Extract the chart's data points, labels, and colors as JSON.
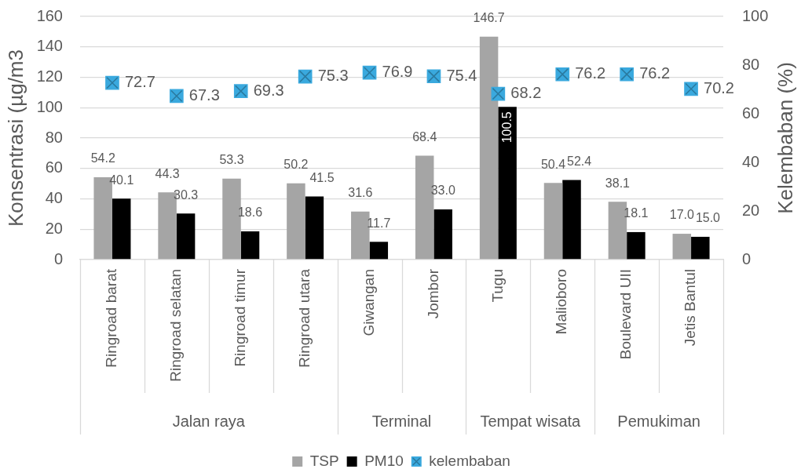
{
  "chart_data": {
    "type": "bar",
    "categories": [
      "Ringroad barat",
      "Ringroad selatan",
      "Ringroad timur",
      "Ringroad utara",
      "Giwangan",
      "Jombor",
      "Tugu",
      "Malioboro",
      "Boulevard UII",
      "Jetis Bantul"
    ],
    "series": [
      {
        "name": "TSP",
        "color": "#a5a5a5",
        "values": [
          54.2,
          44.3,
          53.3,
          50.2,
          31.6,
          68.4,
          146.7,
          50.4,
          38.1,
          17.0
        ],
        "value_labels": [
          "54.2",
          "44.3",
          "53.3",
          "50.2",
          "31.6",
          "68.4",
          "146.7",
          "50.4",
          "38.1",
          "17.0"
        ]
      },
      {
        "name": "PM10",
        "color": "#000000",
        "values": [
          40.1,
          30.3,
          18.6,
          41.5,
          11.7,
          33.0,
          100.5,
          52.4,
          18.1,
          15.0
        ],
        "value_labels": [
          "40.1",
          "30.3",
          "18.6",
          "41.5",
          "11.7",
          "33.0",
          "100.5",
          "52.4",
          "18.1",
          "15.0"
        ]
      },
      {
        "name": "kelembaban",
        "type": "scatter",
        "axis": "y2",
        "color": "#3aa9de",
        "values": [
          72.7,
          67.3,
          69.3,
          75.3,
          76.9,
          75.4,
          68.2,
          76.2,
          76.2,
          70.2
        ],
        "value_labels": [
          "72.7",
          "67.3",
          "69.3",
          "75.3",
          "76.9",
          "75.4",
          "68.2",
          "76.2",
          "76.2",
          "70.2"
        ]
      }
    ],
    "ylabel": "Konsentrasi (µg/m3",
    "y2label": "Kelembaban (%)",
    "ylim": [
      0,
      160
    ],
    "yticks": [
      0,
      20,
      40,
      60,
      80,
      100,
      120,
      140,
      160
    ],
    "y2lim": [
      0,
      100
    ],
    "y2ticks": [
      0,
      20,
      40,
      60,
      80,
      100
    ],
    "grid": "y",
    "legend": "bottom",
    "marker": "square",
    "annotations": [
      "Jalan raya",
      "Terminal",
      "Tempat wisata",
      "Pemukiman"
    ]
  }
}
